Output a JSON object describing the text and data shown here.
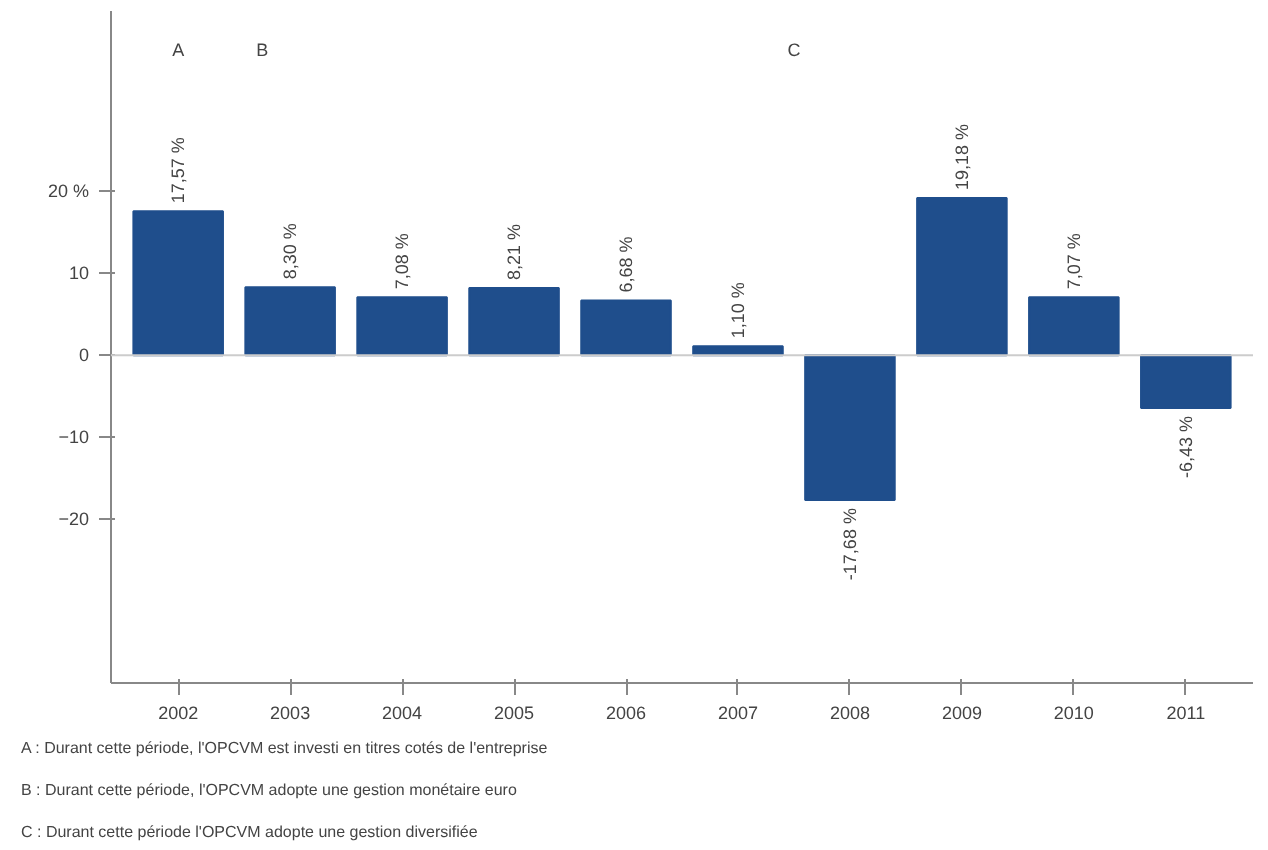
{
  "chart_data": {
    "type": "bar",
    "categories": [
      "2002",
      "2003",
      "2004",
      "2005",
      "2006",
      "2007",
      "2008",
      "2009",
      "2010",
      "2011"
    ],
    "values": [
      17.57,
      8.3,
      7.08,
      8.21,
      6.68,
      1.1,
      -17.68,
      19.18,
      7.07,
      -6.43
    ],
    "value_labels": [
      "17,57 %",
      "8,30 %",
      "7,08 %",
      "8,21 %",
      "6,68 %",
      "1,10 %",
      "-17,68 %",
      "19,18 %",
      "7,07 %",
      "-6,43 %"
    ],
    "color": "#1f4e8c",
    "ylim": [
      -40,
      42
    ],
    "yticks": [
      {
        "value": 20,
        "label": "20 %"
      },
      10,
      0,
      -10,
      -20
    ],
    "grid": false,
    "ref_lines": [
      {
        "axis": "y",
        "value": 0,
        "color": "#cccccc"
      }
    ],
    "annotations": [
      "A",
      "B",
      "C",
      "A : Durant cette période, l'OPCVM est investi en titres cotés de l'entreprise",
      "B : Durant cette période, l'OPCVM adopte une gestion monétaire euro",
      "C : Durant cette période l'OPCVM adopte une gestion diversifiée"
    ]
  }
}
